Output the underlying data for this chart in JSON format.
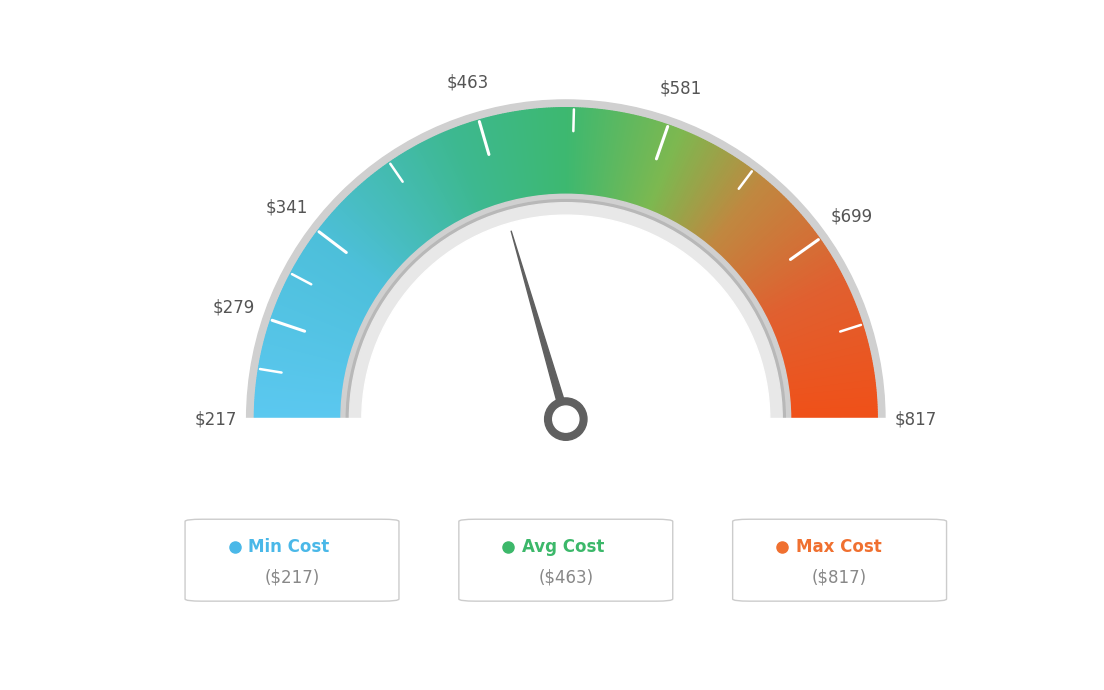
{
  "min_val": 217,
  "max_val": 817,
  "avg_val": 463,
  "tick_labels": [
    "$217",
    "$279",
    "$341",
    "$463",
    "$581",
    "$699",
    "$817"
  ],
  "tick_values": [
    217,
    279,
    341,
    463,
    581,
    699,
    817
  ],
  "minor_tick_values": [
    248,
    310,
    402,
    522,
    640,
    758
  ],
  "legend": [
    {
      "label": "Min Cost",
      "value": "($217)",
      "color": "#4ab8e8"
    },
    {
      "label": "Avg Cost",
      "value": "($463)",
      "color": "#3cb86a"
    },
    {
      "label": "Max Cost",
      "value": "($817)",
      "color": "#f07030"
    }
  ],
  "color_stops": [
    [
      0.0,
      "#5bc8f0"
    ],
    [
      0.2,
      "#4dbfda"
    ],
    [
      0.38,
      "#3db890"
    ],
    [
      0.5,
      "#3db870"
    ],
    [
      0.62,
      "#7db850"
    ],
    [
      0.72,
      "#c08840"
    ],
    [
      0.85,
      "#e06030"
    ],
    [
      1.0,
      "#f05018"
    ]
  ],
  "background_color": "#ffffff",
  "needle_color": "#606060",
  "hub_color": "#606060"
}
